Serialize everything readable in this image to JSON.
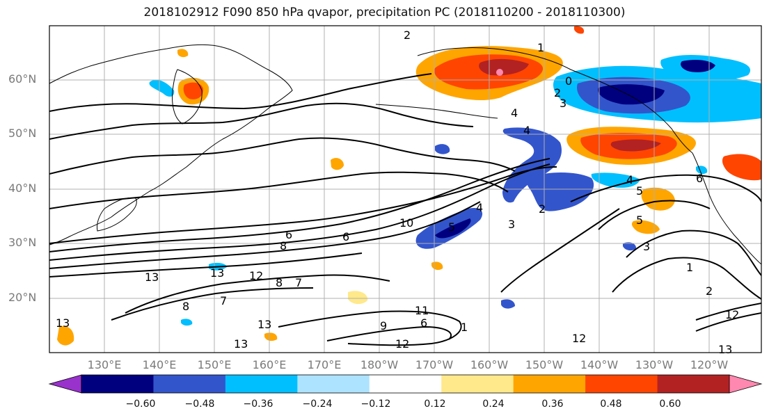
{
  "title": "2018102912 F090 850 hPa qvapor, precipitation PC (2018110200 - 2018110300)",
  "lat_labels": [
    "60°N",
    "50°N",
    "40°N",
    "30°N",
    "20°N"
  ],
  "lon_labels": [
    "130°E",
    "140°E",
    "150°E",
    "160°E",
    "170°E",
    "180°W",
    "170°W",
    "160°W",
    "150°W",
    "140°W",
    "130°W",
    "120°W"
  ],
  "colorbar": {
    "colors": [
      "#9932cc",
      "#00007f",
      "#3355cc",
      "#00bfff",
      "#aee3ff",
      "#ffffff",
      "#ffe98a",
      "#ffa500",
      "#ff4500",
      "#b22222",
      "#ff88b0"
    ],
    "tick_labels": [
      "−0.60",
      "−0.48",
      "−0.36",
      "−0.24",
      "−0.12",
      "0.12",
      "0.24",
      "0.36",
      "0.48",
      "0.60"
    ]
  },
  "contour_labels": [
    "2",
    "1",
    "0",
    "2",
    "3",
    "4",
    "4",
    "6",
    "8",
    "10",
    "12",
    "13",
    "13",
    "13",
    "12",
    "11",
    "9",
    "8",
    "7",
    "6",
    "5",
    "4",
    "3",
    "2",
    "1",
    "1",
    "2",
    "3",
    "4",
    "5",
    "6",
    "12",
    "13",
    "13",
    "12",
    "7",
    "8",
    "13",
    "5",
    "6"
  ]
}
